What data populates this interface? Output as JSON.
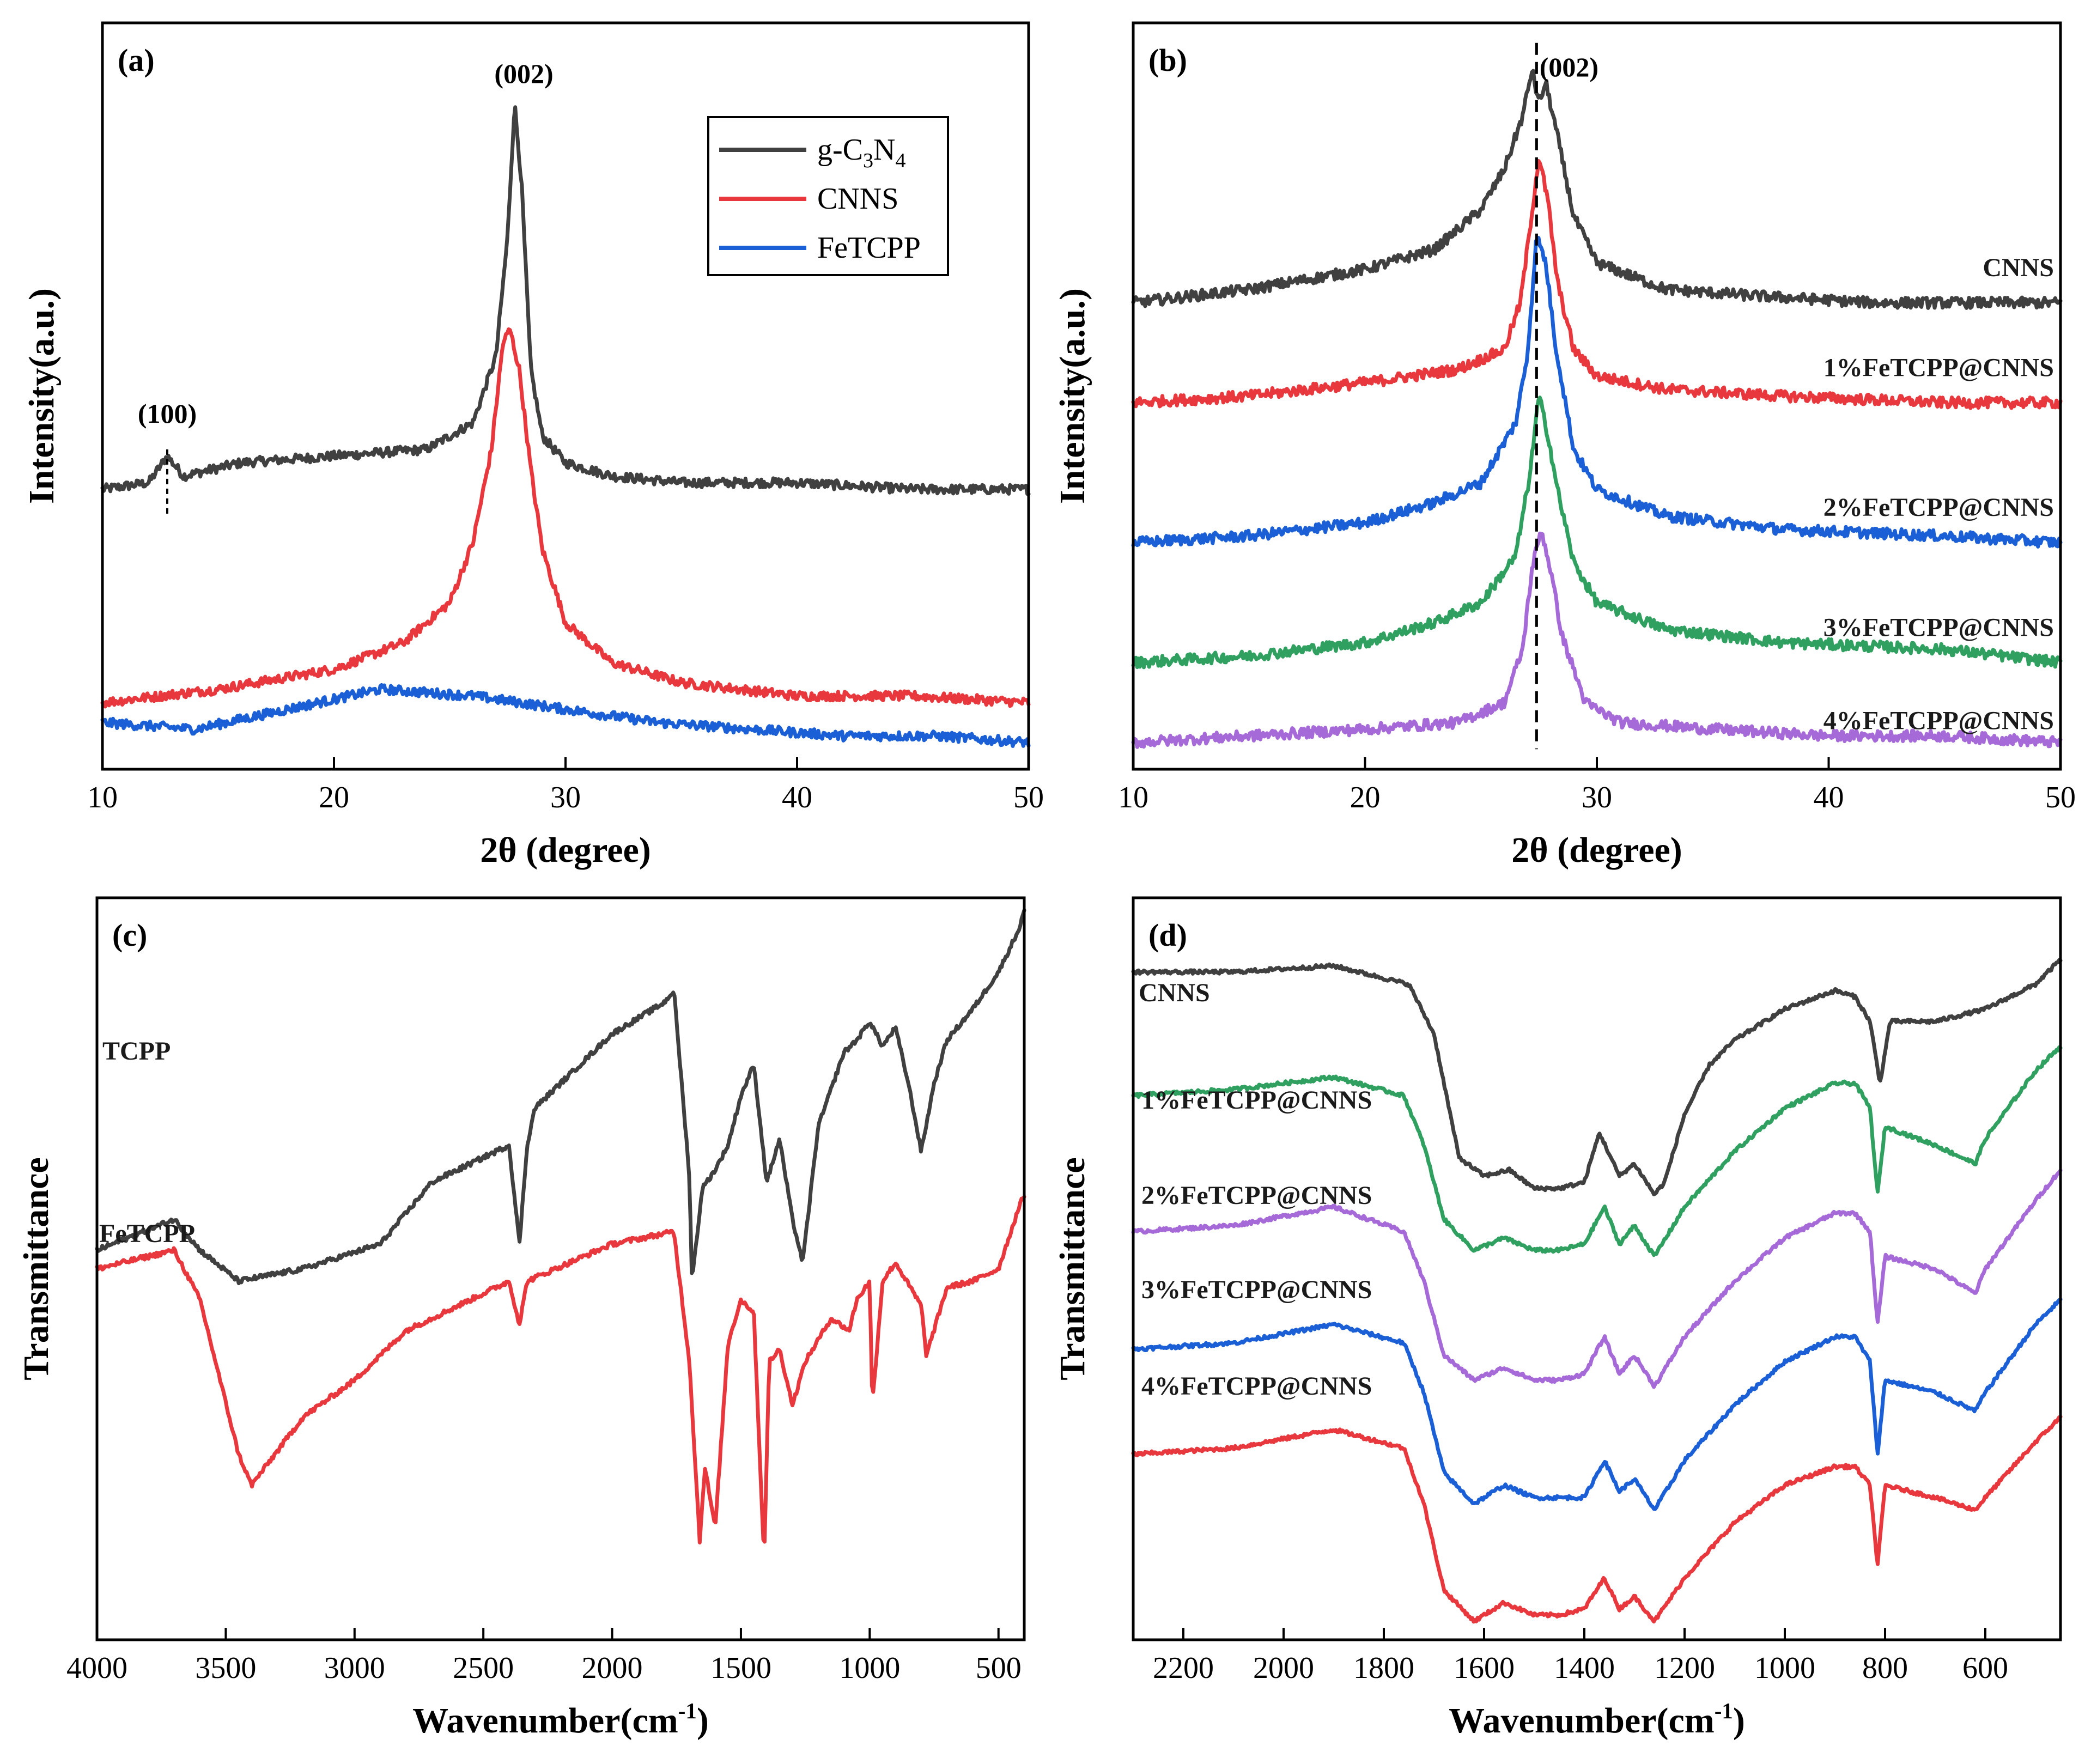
{
  "chart_data": [
    {
      "panel": "(a)",
      "type": "line",
      "xlabel": "2θ (degree)",
      "ylabel": "Intensity(a.u.)",
      "xlim": [
        10,
        50
      ],
      "ylim": [
        0,
        1.12
      ],
      "xticks": [
        10,
        20,
        30,
        40,
        50
      ],
      "legend": {
        "position": "top-right",
        "entries": [
          "g-C3N4",
          "CNNS",
          "FeTCPP"
        ]
      },
      "annotations": [
        {
          "text": "(002)",
          "x": 28.2,
          "y": 1.03
        },
        {
          "text": "(100)",
          "x": 12.8,
          "y": 0.52
        }
      ],
      "series": [
        {
          "name": "g-C3N4",
          "legend_label": "g-C3N4",
          "color": "#404040",
          "x": [
            10,
            12,
            12.8,
            13.5,
            16,
            20,
            24,
            26,
            27,
            27.5,
            27.8,
            28.1,
            28.5,
            29,
            30,
            32,
            35,
            40,
            45,
            50
          ],
          "y": [
            0.42,
            0.43,
            0.47,
            0.44,
            0.46,
            0.47,
            0.48,
            0.52,
            0.62,
            0.8,
            1.0,
            0.88,
            0.6,
            0.5,
            0.46,
            0.44,
            0.43,
            0.43,
            0.42,
            0.42
          ]
        },
        {
          "name": "CNNS",
          "legend_label": "CNNS",
          "color": "#e8383d",
          "x": [
            10,
            15,
            20,
            23,
            25,
            26,
            26.8,
            27.3,
            27.6,
            28,
            28.5,
            29,
            30,
            32,
            35,
            40,
            45,
            50
          ],
          "y": [
            0.1,
            0.12,
            0.15,
            0.19,
            0.25,
            0.34,
            0.48,
            0.64,
            0.66,
            0.6,
            0.45,
            0.33,
            0.22,
            0.16,
            0.13,
            0.11,
            0.11,
            0.1
          ]
        },
        {
          "name": "FeTCPP",
          "legend_label": "FeTCPP",
          "color": "#1a5fd6",
          "x": [
            10,
            14,
            18,
            22,
            26,
            30,
            34,
            38,
            42,
            46,
            50
          ],
          "y": [
            0.07,
            0.06,
            0.09,
            0.12,
            0.11,
            0.09,
            0.07,
            0.06,
            0.05,
            0.05,
            0.04
          ]
        }
      ]
    },
    {
      "panel": "(b)",
      "type": "line",
      "xlabel": "2θ (degree)",
      "ylabel": "Intensity(a.u.)",
      "xlim": [
        10,
        50
      ],
      "ylim": [
        0,
        1.12
      ],
      "xticks": [
        10,
        20,
        30,
        40,
        50
      ],
      "annotations": [
        {
          "text": "(002)",
          "x": 28.8,
          "y": 1.04
        }
      ],
      "reference_line": {
        "x": 27.4
      },
      "series": [
        {
          "name": "CNNS",
          "color": "#404040",
          "x": [
            10,
            15,
            20,
            23,
            25,
            26,
            26.8,
            27.2,
            27.5,
            27.8,
            28.3,
            29,
            30,
            33,
            37,
            42,
            50
          ],
          "y": [
            0.7,
            0.72,
            0.75,
            0.78,
            0.84,
            0.9,
            0.98,
            1.05,
            1.0,
            1.03,
            0.95,
            0.83,
            0.76,
            0.72,
            0.71,
            0.7,
            0.7
          ]
        },
        {
          "name": "1%FeTCPP@CNNS",
          "color": "#e8383d",
          "x": [
            10,
            15,
            20,
            24,
            26,
            26.7,
            27,
            27.5,
            27.9,
            28.3,
            29,
            30,
            33,
            38,
            45,
            50
          ],
          "y": [
            0.55,
            0.56,
            0.58,
            0.6,
            0.63,
            0.7,
            0.78,
            0.92,
            0.85,
            0.73,
            0.63,
            0.59,
            0.57,
            0.56,
            0.55,
            0.55
          ]
        },
        {
          "name": "2%FeTCPP@CNNS",
          "color": "#1a5fd6",
          "x": [
            10,
            15,
            20,
            23,
            25,
            26.5,
            27,
            27.4,
            27.8,
            28.2,
            29,
            30,
            33,
            38,
            45,
            50
          ],
          "y": [
            0.34,
            0.35,
            0.37,
            0.4,
            0.43,
            0.52,
            0.62,
            0.8,
            0.76,
            0.64,
            0.48,
            0.42,
            0.38,
            0.36,
            0.35,
            0.34
          ]
        },
        {
          "name": "3%FeTCPP@CNNS",
          "color": "#2fa05f",
          "x": [
            10,
            15,
            20,
            23,
            25,
            26.5,
            27.1,
            27.5,
            27.9,
            28.3,
            29,
            30,
            33,
            38,
            45,
            50
          ],
          "y": [
            0.16,
            0.17,
            0.19,
            0.22,
            0.25,
            0.32,
            0.44,
            0.56,
            0.5,
            0.42,
            0.31,
            0.25,
            0.21,
            0.19,
            0.18,
            0.16
          ]
        },
        {
          "name": "4%FeTCPP@CNNS",
          "color": "#a56ad8",
          "x": [
            10,
            15,
            20,
            24,
            26,
            26.8,
            27.2,
            27.6,
            28,
            28.5,
            29.5,
            31,
            35,
            40,
            45,
            50
          ],
          "y": [
            0.04,
            0.05,
            0.06,
            0.07,
            0.1,
            0.18,
            0.3,
            0.36,
            0.3,
            0.2,
            0.1,
            0.07,
            0.06,
            0.05,
            0.05,
            0.04
          ]
        }
      ]
    },
    {
      "panel": "(c)",
      "type": "line",
      "xlabel": "Wavenumber(cm⁻¹)",
      "ylabel": "Transmittance",
      "xlim": [
        4000,
        400
      ],
      "ylim": [
        0,
        1.2
      ],
      "xticks": [
        4000,
        3500,
        3000,
        2500,
        2000,
        1500,
        1000,
        500
      ],
      "series": [
        {
          "name": "TCPP",
          "color": "#404040",
          "x": [
            4000,
            3700,
            3600,
            3450,
            3200,
            2900,
            2700,
            2400,
            2360,
            2330,
            2300,
            2000,
            1800,
            1760,
            1700,
            1690,
            1650,
            1600,
            1550,
            1500,
            1450,
            1400,
            1350,
            1300,
            1260,
            1200,
            1100,
            1050,
            1000,
            950,
            900,
            850,
            800,
            750,
            700,
            600,
            500,
            420,
            400
          ],
          "y": [
            0.63,
            0.68,
            0.63,
            0.58,
            0.6,
            0.64,
            0.74,
            0.8,
            0.64,
            0.8,
            0.86,
            0.98,
            1.03,
            1.05,
            0.75,
            0.58,
            0.73,
            0.76,
            0.8,
            0.88,
            0.93,
            0.74,
            0.81,
            0.68,
            0.61,
            0.83,
            0.95,
            0.97,
            1.0,
            0.96,
            0.99,
            0.9,
            0.79,
            0.9,
            0.97,
            1.02,
            1.08,
            1.15,
            1.18
          ]
        },
        {
          "name": "FeTCPP",
          "color": "#e8383d",
          "x": [
            4000,
            3700,
            3600,
            3450,
            3400,
            3200,
            3000,
            2800,
            2400,
            2360,
            2330,
            2000,
            1760,
            1700,
            1660,
            1640,
            1600,
            1550,
            1500,
            1450,
            1410,
            1390,
            1350,
            1300,
            1250,
            1150,
            1080,
            1050,
            1000,
            990,
            950,
            900,
            800,
            780,
            700,
            600,
            500,
            420,
            400
          ],
          "y": [
            0.6,
            0.63,
            0.55,
            0.3,
            0.25,
            0.36,
            0.42,
            0.5,
            0.58,
            0.51,
            0.58,
            0.64,
            0.66,
            0.45,
            0.16,
            0.28,
            0.18,
            0.48,
            0.55,
            0.53,
            0.13,
            0.45,
            0.47,
            0.38,
            0.45,
            0.52,
            0.5,
            0.55,
            0.58,
            0.38,
            0.58,
            0.61,
            0.54,
            0.46,
            0.57,
            0.58,
            0.6,
            0.7,
            0.72
          ]
        }
      ]
    },
    {
      "panel": "(d)",
      "type": "line",
      "xlabel": "Wavenumber(cm⁻¹)",
      "ylabel": "Transmittance",
      "xlim": [
        2300,
        450
      ],
      "ylim": [
        0,
        1.2
      ],
      "xticks": [
        2200,
        2000,
        1800,
        1600,
        1400,
        1200,
        1000,
        800,
        600
      ],
      "series": [
        {
          "name": "CNNS",
          "color": "#404040",
          "x": [
            2300,
            2100,
            1900,
            1750,
            1700,
            1650,
            1600,
            1550,
            1500,
            1450,
            1400,
            1370,
            1330,
            1300,
            1260,
            1240,
            1200,
            1150,
            1100,
            1000,
            900,
            860,
            830,
            810,
            790,
            700,
            600,
            500,
            450
          ],
          "y": [
            1.08,
            1.08,
            1.09,
            1.06,
            0.98,
            0.78,
            0.75,
            0.76,
            0.73,
            0.73,
            0.74,
            0.82,
            0.75,
            0.77,
            0.72,
            0.74,
            0.85,
            0.93,
            0.97,
            1.02,
            1.05,
            1.04,
            1.0,
            0.9,
            1.0,
            1.0,
            1.02,
            1.06,
            1.1
          ]
        },
        {
          "name": "1%FeTCPP@CNNS",
          "color": "#2fa05f",
          "x": [
            2300,
            2100,
            1900,
            1760,
            1720,
            1680,
            1620,
            1560,
            1500,
            1450,
            1400,
            1360,
            1330,
            1300,
            1260,
            1200,
            1100,
            1000,
            900,
            860,
            830,
            815,
            800,
            700,
            620,
            600,
            500,
            450
          ],
          "y": [
            0.88,
            0.89,
            0.91,
            0.88,
            0.8,
            0.68,
            0.63,
            0.65,
            0.63,
            0.63,
            0.64,
            0.7,
            0.64,
            0.67,
            0.62,
            0.7,
            0.79,
            0.86,
            0.9,
            0.9,
            0.86,
            0.72,
            0.83,
            0.8,
            0.77,
            0.81,
            0.92,
            0.96
          ]
        },
        {
          "name": "2%FeTCPP@CNNS",
          "color": "#a56ad8",
          "x": [
            2300,
            2100,
            1900,
            1760,
            1720,
            1680,
            1620,
            1560,
            1500,
            1450,
            1400,
            1360,
            1330,
            1300,
            1260,
            1200,
            1100,
            1000,
            900,
            860,
            830,
            815,
            800,
            700,
            620,
            600,
            500,
            450
          ],
          "y": [
            0.66,
            0.67,
            0.7,
            0.66,
            0.58,
            0.46,
            0.42,
            0.44,
            0.42,
            0.42,
            0.43,
            0.49,
            0.43,
            0.46,
            0.41,
            0.49,
            0.58,
            0.65,
            0.69,
            0.69,
            0.66,
            0.51,
            0.62,
            0.6,
            0.56,
            0.6,
            0.71,
            0.76
          ]
        },
        {
          "name": "3%FeTCPP@CNNS",
          "color": "#1a5fd6",
          "x": [
            2300,
            2100,
            1900,
            1760,
            1720,
            1680,
            1620,
            1560,
            1500,
            1450,
            1400,
            1360,
            1330,
            1300,
            1260,
            1200,
            1100,
            1000,
            900,
            860,
            830,
            815,
            800,
            700,
            620,
            600,
            500,
            450
          ],
          "y": [
            0.47,
            0.48,
            0.51,
            0.48,
            0.4,
            0.27,
            0.22,
            0.25,
            0.23,
            0.23,
            0.23,
            0.29,
            0.24,
            0.26,
            0.21,
            0.29,
            0.38,
            0.45,
            0.49,
            0.49,
            0.45,
            0.3,
            0.42,
            0.4,
            0.37,
            0.4,
            0.51,
            0.55
          ]
        },
        {
          "name": "4%FeTCPP@CNNS",
          "color": "#e8383d",
          "x": [
            2300,
            2100,
            1900,
            1760,
            1720,
            1680,
            1620,
            1560,
            1500,
            1450,
            1400,
            1360,
            1330,
            1300,
            1260,
            1200,
            1100,
            1000,
            900,
            860,
            830,
            815,
            800,
            700,
            620,
            600,
            500,
            450
          ],
          "y": [
            0.3,
            0.31,
            0.34,
            0.31,
            0.22,
            0.08,
            0.03,
            0.06,
            0.04,
            0.04,
            0.05,
            0.1,
            0.05,
            0.07,
            0.03,
            0.1,
            0.19,
            0.25,
            0.28,
            0.28,
            0.25,
            0.12,
            0.25,
            0.23,
            0.21,
            0.23,
            0.32,
            0.36
          ]
        }
      ]
    }
  ]
}
